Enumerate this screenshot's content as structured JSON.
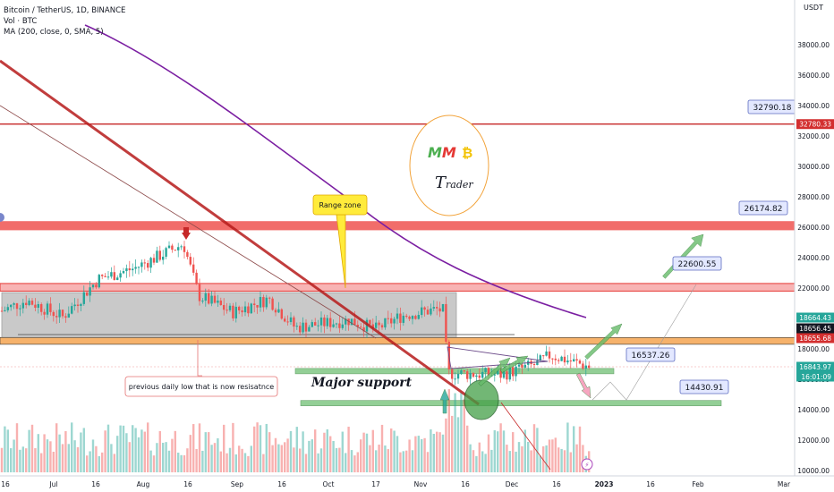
{
  "header": {
    "symbol_line": "Bitcoin / TetherUS, 1D, BINANCE",
    "volume_line": "Vol · BTC",
    "ma_line": "MA (200, close, 0, SMA, 5)",
    "currency": "USDT"
  },
  "chart_data": {
    "type": "candlestick",
    "y_axis_ticks": [
      "38000.00",
      "36000.00",
      "34000.00",
      "32000.00",
      "30000.00",
      "28000.00",
      "26000.00",
      "24000.00",
      "22000.00",
      "20000.00",
      "18000.00",
      "16000.00",
      "14000.00",
      "12000.00",
      "10000.00"
    ],
    "x_axis_ticks": [
      "16",
      "Jul",
      "16",
      "Aug",
      "16",
      "Sep",
      "16",
      "Oct",
      "17",
      "Nov",
      "16",
      "Dec",
      "16",
      "2023",
      "16",
      "Feb",
      "Mar"
    ],
    "ylim": [
      10000,
      40000
    ],
    "price_badges": [
      {
        "label": "32780.33",
        "value": 32780.33,
        "color": "#d32f2f"
      },
      {
        "label": "18664.43",
        "value": 18664.43,
        "color": "#26a69a"
      },
      {
        "label": "18656.45",
        "value": 18656.45,
        "color": "#131722"
      },
      {
        "label": "18655.68",
        "value": 18655.68,
        "color": "#d32f2f"
      },
      {
        "label": "16843.97",
        "value": 16843.97,
        "color": "#26a69a"
      },
      {
        "label": "16:01:09",
        "value": 16400,
        "color": "#26a69a"
      }
    ],
    "annotations": [
      {
        "label": "32790.18",
        "value": 32790.18
      },
      {
        "label": "26174.82",
        "value": 26174.82
      },
      {
        "label": "22600.55",
        "value": 22600.55
      },
      {
        "label": "16537.26",
        "value": 16537.26
      },
      {
        "label": "14430.91",
        "value": 14430.91
      }
    ],
    "callouts": {
      "range_zone": "Range zone",
      "previous_low": "previous daily low that is now resisatnce",
      "major_support": "Major support"
    },
    "logo": {
      "letters": "MM",
      "coin": "₿",
      "word_first": "T",
      "word_rest": "rader"
    },
    "levels": {
      "resistance_top": 32780.33,
      "red_zone": [
        25800,
        26400
      ],
      "pink_zone": [
        21800,
        22300
      ],
      "range_box": [
        18750,
        21700
      ],
      "orange_zone": [
        18300,
        18750
      ],
      "support_1": 16537.26,
      "support_2": 14430.91
    },
    "colors": {
      "up": "#26a69a",
      "down": "#ef5350",
      "ma": "#7b1fa2",
      "trend": "#b71c1c"
    }
  }
}
